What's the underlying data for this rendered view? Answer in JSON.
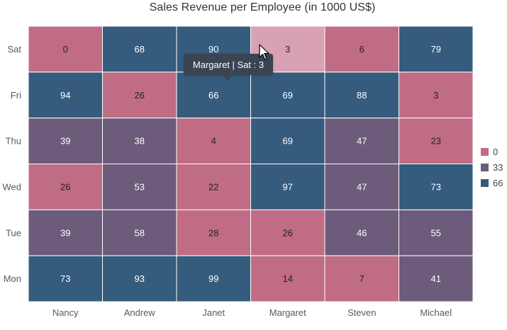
{
  "chart_data": {
    "type": "heatmap",
    "title": "Sales Revenue per Employee (in 1000 US$)",
    "x_categories": [
      "Nancy",
      "Andrew",
      "Janet",
      "Margaret",
      "Steven",
      "Michael"
    ],
    "y_categories": [
      "Sat",
      "Fri",
      "Thu",
      "Wed",
      "Tue",
      "Mon"
    ],
    "values": [
      [
        0,
        68,
        90,
        3,
        6,
        79
      ],
      [
        94,
        26,
        66,
        69,
        88,
        3
      ],
      [
        39,
        38,
        4,
        69,
        47,
        23
      ],
      [
        26,
        53,
        22,
        97,
        47,
        73
      ],
      [
        39,
        58,
        28,
        26,
        46,
        55
      ],
      [
        73,
        93,
        99,
        14,
        7,
        41
      ]
    ],
    "color_scale": [
      {
        "value": 0,
        "label": "0",
        "color": "#C06C84"
      },
      {
        "value": 33,
        "label": "33",
        "color": "#6C5B7B"
      },
      {
        "value": 66,
        "label": "66",
        "color": "#355C7D"
      }
    ],
    "highlight_color": "#D8A2B2",
    "highlighted_cell": {
      "x": "Margaret",
      "y": "Sat"
    },
    "legend_position": "right",
    "grid": true
  },
  "tooltip": {
    "text": "Margaret | Sat : 3"
  },
  "cursor": {
    "icon": "mouse-pointer-icon"
  }
}
